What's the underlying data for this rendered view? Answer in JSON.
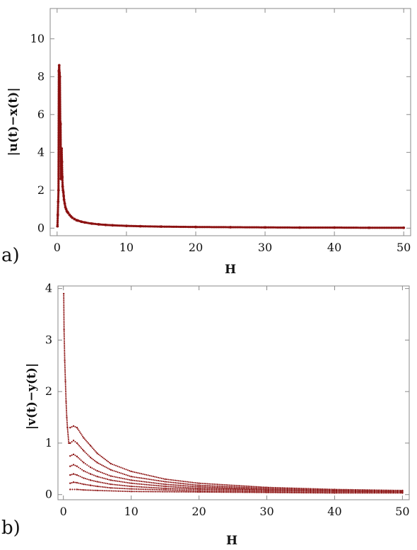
{
  "chart_data": [
    {
      "type": "scatter",
      "panel_label": "a)",
      "xlabel": "H",
      "ylabel": "|u(t)−x(t)|",
      "xlim": [
        -1,
        51
      ],
      "ylim": [
        -0.4,
        11.6
      ],
      "xticks": [
        0,
        10,
        20,
        30,
        40,
        50
      ],
      "yticks": [
        0,
        2,
        4,
        6,
        8,
        10
      ],
      "x_tick_labels": [
        "0",
        "10",
        "20",
        "30",
        "40",
        "50"
      ],
      "y_tick_labels": [
        "0",
        "2",
        "4",
        "6",
        "8",
        "10"
      ],
      "grid": false,
      "marker_color": "#8b1010",
      "series": [
        {
          "points": [
            [
              0.05,
              0.1
            ],
            [
              0.1,
              0.7
            ],
            [
              0.15,
              1.4
            ],
            [
              0.2,
              2.0
            ],
            [
              0.25,
              8.3
            ],
            [
              0.3,
              8.6
            ],
            [
              0.35,
              8.2
            ],
            [
              0.4,
              8.0
            ],
            [
              0.45,
              5.6
            ],
            [
              0.5,
              5.5
            ],
            [
              0.55,
              2.6
            ],
            [
              0.6,
              2.9
            ],
            [
              0.65,
              4.2
            ],
            [
              0.7,
              3.5
            ],
            [
              0.75,
              2.7
            ],
            [
              0.8,
              2.2
            ],
            [
              0.85,
              2.0
            ],
            [
              0.9,
              1.9
            ],
            [
              0.95,
              1.7
            ],
            [
              1.0,
              1.5
            ],
            [
              1.1,
              1.3
            ],
            [
              1.2,
              1.1
            ],
            [
              1.3,
              1.0
            ],
            [
              1.4,
              0.9
            ],
            [
              1.5,
              0.85
            ],
            [
              1.6,
              0.8
            ],
            [
              1.8,
              0.7
            ],
            [
              2.0,
              0.62
            ],
            [
              2.2,
              0.55
            ],
            [
              2.5,
              0.48
            ],
            [
              2.8,
              0.42
            ],
            [
              3.0,
              0.4
            ],
            [
              3.5,
              0.34
            ],
            [
              4.0,
              0.3
            ],
            [
              5.0,
              0.24
            ],
            [
              6.0,
              0.2
            ],
            [
              7.0,
              0.17
            ],
            [
              8.0,
              0.15
            ],
            [
              10.0,
              0.12
            ],
            [
              12.0,
              0.1
            ],
            [
              15.0,
              0.08
            ],
            [
              20.0,
              0.06
            ],
            [
              25.0,
              0.05
            ],
            [
              30.0,
              0.04
            ],
            [
              35.0,
              0.03
            ],
            [
              40.0,
              0.03
            ],
            [
              45.0,
              0.02
            ],
            [
              50.0,
              0.02
            ]
          ]
        }
      ]
    },
    {
      "type": "scatter",
      "panel_label": "b)",
      "xlabel": "H",
      "ylabel": "|v(t)−y(t)|",
      "xlim": [
        -0.8,
        51
      ],
      "ylim": [
        -0.1,
        4.05
      ],
      "xticks": [
        0,
        10,
        20,
        30,
        40,
        50
      ],
      "yticks": [
        0,
        1,
        2,
        3,
        4
      ],
      "x_tick_labels": [
        "0",
        "10",
        "20",
        "30",
        "40",
        "50"
      ],
      "y_tick_labels": [
        "0",
        "1",
        "2",
        "3",
        "4"
      ],
      "grid": false,
      "marker_color": "#8b1010",
      "series": [
        {
          "points": [
            [
              0.05,
              3.9
            ],
            [
              0.1,
              3.2
            ],
            [
              0.2,
              2.6
            ],
            [
              0.3,
              2.2
            ],
            [
              0.4,
              1.8
            ],
            [
              0.5,
              1.5
            ],
            [
              0.6,
              1.3
            ],
            [
              0.8,
              1.0
            ],
            [
              1.0,
              1.0
            ]
          ]
        },
        {
          "points": [
            [
              1.0,
              1.3
            ],
            [
              1.5,
              1.33
            ],
            [
              2.0,
              1.3
            ],
            [
              3.0,
              1.1
            ],
            [
              4.0,
              0.95
            ],
            [
              5.0,
              0.8
            ],
            [
              7.0,
              0.6
            ],
            [
              10.0,
              0.45
            ],
            [
              15.0,
              0.3
            ],
            [
              20.0,
              0.22
            ],
            [
              30.0,
              0.14
            ],
            [
              40.0,
              0.1
            ],
            [
              50.0,
              0.08
            ]
          ]
        },
        {
          "points": [
            [
              1.0,
              1.0
            ],
            [
              1.5,
              1.05
            ],
            [
              2.0,
              1.0
            ],
            [
              3.0,
              0.85
            ],
            [
              4.0,
              0.72
            ],
            [
              5.0,
              0.62
            ],
            [
              7.0,
              0.48
            ],
            [
              10.0,
              0.35
            ],
            [
              15.0,
              0.25
            ],
            [
              20.0,
              0.18
            ],
            [
              30.0,
              0.12
            ],
            [
              40.0,
              0.09
            ],
            [
              50.0,
              0.07
            ]
          ]
        },
        {
          "points": [
            [
              1.0,
              0.75
            ],
            [
              1.5,
              0.78
            ],
            [
              2.0,
              0.74
            ],
            [
              3.0,
              0.62
            ],
            [
              4.0,
              0.53
            ],
            [
              5.0,
              0.46
            ],
            [
              7.0,
              0.36
            ],
            [
              10.0,
              0.28
            ],
            [
              15.0,
              0.2
            ],
            [
              20.0,
              0.15
            ],
            [
              30.0,
              0.1
            ],
            [
              40.0,
              0.08
            ],
            [
              50.0,
              0.06
            ]
          ]
        },
        {
          "points": [
            [
              1.0,
              0.55
            ],
            [
              1.5,
              0.58
            ],
            [
              2.0,
              0.55
            ],
            [
              3.0,
              0.46
            ],
            [
              4.0,
              0.4
            ],
            [
              5.0,
              0.35
            ],
            [
              7.0,
              0.28
            ],
            [
              10.0,
              0.22
            ],
            [
              15.0,
              0.16
            ],
            [
              20.0,
              0.12
            ],
            [
              30.0,
              0.09
            ],
            [
              40.0,
              0.07
            ],
            [
              50.0,
              0.05
            ]
          ]
        },
        {
          "points": [
            [
              1.0,
              0.38
            ],
            [
              1.5,
              0.4
            ],
            [
              2.0,
              0.38
            ],
            [
              3.0,
              0.32
            ],
            [
              4.0,
              0.28
            ],
            [
              5.0,
              0.25
            ],
            [
              7.0,
              0.2
            ],
            [
              10.0,
              0.16
            ],
            [
              15.0,
              0.12
            ],
            [
              20.0,
              0.1
            ],
            [
              30.0,
              0.07
            ],
            [
              40.0,
              0.06
            ],
            [
              50.0,
              0.05
            ]
          ]
        },
        {
          "points": [
            [
              1.0,
              0.22
            ],
            [
              1.5,
              0.24
            ],
            [
              2.0,
              0.23
            ],
            [
              3.0,
              0.2
            ],
            [
              4.0,
              0.18
            ],
            [
              5.0,
              0.16
            ],
            [
              7.0,
              0.13
            ],
            [
              10.0,
              0.11
            ],
            [
              15.0,
              0.09
            ],
            [
              20.0,
              0.07
            ],
            [
              30.0,
              0.05
            ],
            [
              40.0,
              0.04
            ],
            [
              50.0,
              0.04
            ]
          ]
        },
        {
          "points": [
            [
              1.0,
              0.1
            ],
            [
              2.0,
              0.1
            ],
            [
              3.0,
              0.09
            ],
            [
              5.0,
              0.08
            ],
            [
              10.0,
              0.06
            ],
            [
              20.0,
              0.05
            ],
            [
              30.0,
              0.04
            ],
            [
              40.0,
              0.03
            ],
            [
              50.0,
              0.03
            ]
          ]
        }
      ]
    }
  ]
}
